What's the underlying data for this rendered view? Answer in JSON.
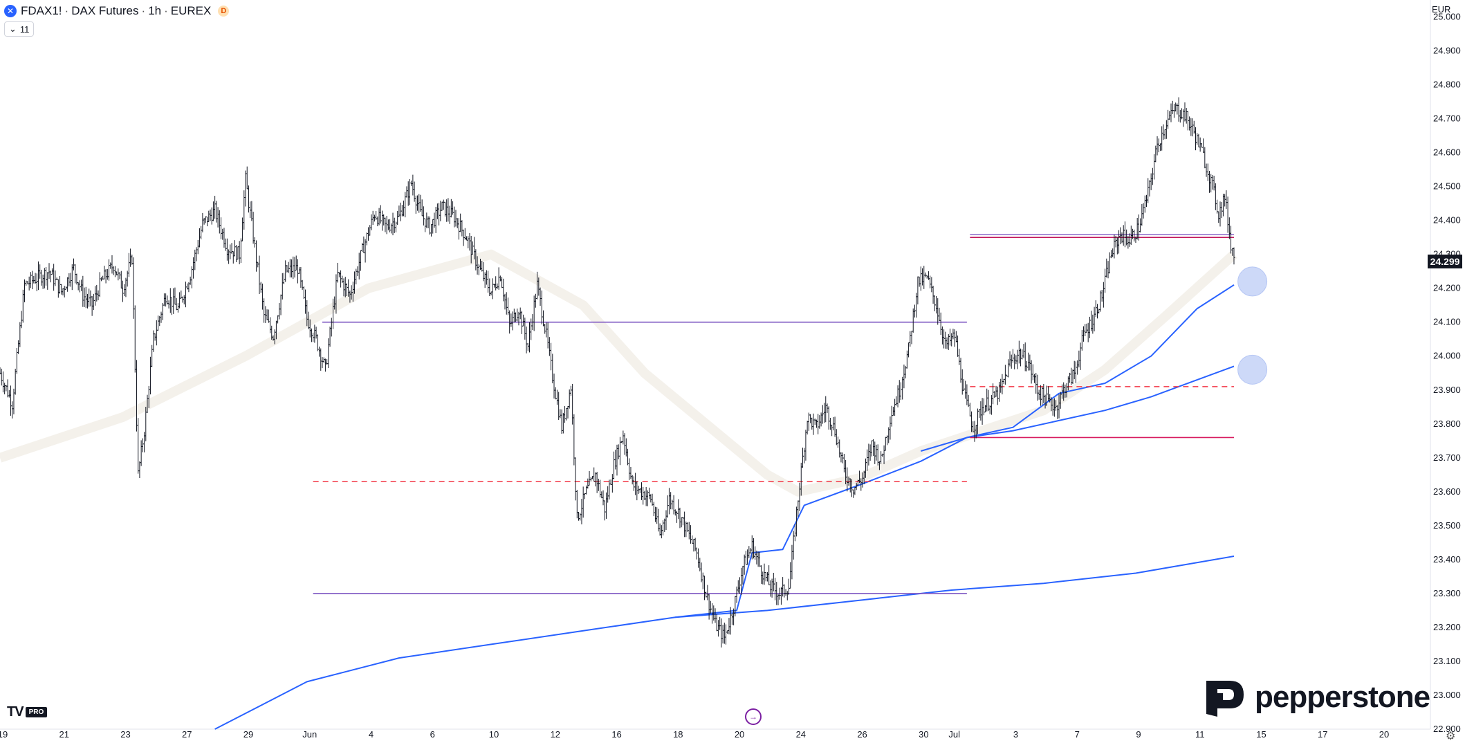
{
  "header": {
    "symbol": "FDAX1!",
    "description": "DAX Futures",
    "interval": "1h",
    "exchange": "EUREX",
    "delayed_badge": "D",
    "indicator_count": "11",
    "currency": "EUR"
  },
  "last_price_label": "24.299",
  "brand": {
    "name": "pepperstone",
    "platform_logo": "TV",
    "platform_tier": "PRO"
  },
  "icons": {
    "symbol_icon": "exchange-icon",
    "goto_realtime": "go-to-realtime-icon",
    "settings": "gear-icon",
    "chevron": "chevron-down-icon"
  },
  "colors": {
    "candles": "#131722",
    "vwap_bands": "#2962ff",
    "level_purple": "#7e57c2",
    "level_magenta": "#d81b60",
    "level_red_dashed": "#f23645",
    "markers": "#c5d3f7"
  },
  "chart_data": {
    "type": "line",
    "title": "",
    "xlabel": "",
    "ylabel": "",
    "y_ticks": [
      "25.000",
      "24.900",
      "24.800",
      "24.700",
      "24.600",
      "24.500",
      "24.400",
      "24.300",
      "24.200",
      "24.100",
      "24.000",
      "23.900",
      "23.800",
      "23.700",
      "23.600",
      "23.500",
      "23.400",
      "23.300",
      "23.200",
      "23.100",
      "23.000",
      "22.900"
    ],
    "ylim": [
      22900,
      25050
    ],
    "x_ticks": [
      {
        "i": 0,
        "label": "19"
      },
      {
        "i": 20,
        "label": "21"
      },
      {
        "i": 40,
        "label": "23"
      },
      {
        "i": 60,
        "label": "27"
      },
      {
        "i": 80,
        "label": "29"
      },
      {
        "i": 100,
        "label": "Jun"
      },
      {
        "i": 120,
        "label": "4"
      },
      {
        "i": 140,
        "label": "6"
      },
      {
        "i": 160,
        "label": "10"
      },
      {
        "i": 180,
        "label": "12"
      },
      {
        "i": 200,
        "label": "16"
      },
      {
        "i": 220,
        "label": "18"
      },
      {
        "i": 240,
        "label": "20"
      },
      {
        "i": 260,
        "label": "24"
      },
      {
        "i": 280,
        "label": "26"
      },
      {
        "i": 300,
        "label": "30"
      },
      {
        "i": 310,
        "label": "Jul"
      },
      {
        "i": 330,
        "label": "3"
      },
      {
        "i": 350,
        "label": "7"
      },
      {
        "i": 370,
        "label": "9"
      },
      {
        "i": 390,
        "label": "11"
      },
      {
        "i": 410,
        "label": "15"
      },
      {
        "i": 430,
        "label": "17"
      },
      {
        "i": 450,
        "label": "20"
      }
    ],
    "x_range": [
      0,
      466
    ],
    "price_path": [
      [
        0,
        23950
      ],
      [
        4,
        23860
      ],
      [
        8,
        24210
      ],
      [
        12,
        24230
      ],
      [
        16,
        24250
      ],
      [
        20,
        24190
      ],
      [
        24,
        24260
      ],
      [
        27,
        24180
      ],
      [
        30,
        24150
      ],
      [
        33,
        24220
      ],
      [
        37,
        24270
      ],
      [
        40,
        24200
      ],
      [
        43,
        24290
      ],
      [
        45,
        23650
      ],
      [
        47,
        23780
      ],
      [
        50,
        24050
      ],
      [
        54,
        24180
      ],
      [
        58,
        24140
      ],
      [
        62,
        24240
      ],
      [
        66,
        24390
      ],
      [
        70,
        24430
      ],
      [
        74,
        24320
      ],
      [
        78,
        24300
      ],
      [
        80,
        24520
      ],
      [
        83,
        24320
      ],
      [
        86,
        24120
      ],
      [
        89,
        24060
      ],
      [
        93,
        24250
      ],
      [
        97,
        24260
      ],
      [
        100,
        24110
      ],
      [
        103,
        24050
      ],
      [
        106,
        23960
      ],
      [
        110,
        24240
      ],
      [
        114,
        24180
      ],
      [
        118,
        24310
      ],
      [
        122,
        24420
      ],
      [
        126,
        24380
      ],
      [
        130,
        24410
      ],
      [
        134,
        24510
      ],
      [
        137,
        24420
      ],
      [
        140,
        24380
      ],
      [
        144,
        24440
      ],
      [
        148,
        24410
      ],
      [
        152,
        24350
      ],
      [
        156,
        24260
      ],
      [
        160,
        24190
      ],
      [
        163,
        24240
      ],
      [
        166,
        24090
      ],
      [
        169,
        24140
      ],
      [
        172,
        24030
      ],
      [
        175,
        24210
      ],
      [
        178,
        24060
      ],
      [
        180,
        23940
      ],
      [
        183,
        23790
      ],
      [
        186,
        23910
      ],
      [
        188,
        23520
      ],
      [
        191,
        23600
      ],
      [
        194,
        23650
      ],
      [
        197,
        23550
      ],
      [
        200,
        23680
      ],
      [
        203,
        23770
      ],
      [
        206,
        23620
      ],
      [
        209,
        23600
      ],
      [
        212,
        23580
      ],
      [
        215,
        23470
      ],
      [
        218,
        23580
      ],
      [
        221,
        23540
      ],
      [
        224,
        23480
      ],
      [
        227,
        23420
      ],
      [
        230,
        23300
      ],
      [
        233,
        23210
      ],
      [
        236,
        23170
      ],
      [
        239,
        23260
      ],
      [
        242,
        23380
      ],
      [
        245,
        23440
      ],
      [
        248,
        23370
      ],
      [
        251,
        23320
      ],
      [
        254,
        23300
      ],
      [
        257,
        23320
      ],
      [
        260,
        23580
      ],
      [
        263,
        23820
      ],
      [
        266,
        23790
      ],
      [
        269,
        23850
      ],
      [
        272,
        23780
      ],
      [
        275,
        23660
      ],
      [
        278,
        23610
      ],
      [
        281,
        23640
      ],
      [
        284,
        23740
      ],
      [
        287,
        23690
      ],
      [
        290,
        23820
      ],
      [
        293,
        23900
      ],
      [
        296,
        24020
      ],
      [
        299,
        24220
      ],
      [
        302,
        24230
      ],
      [
        305,
        24150
      ],
      [
        308,
        24030
      ],
      [
        311,
        24060
      ],
      [
        314,
        23890
      ],
      [
        317,
        23790
      ],
      [
        320,
        23850
      ],
      [
        323,
        23870
      ],
      [
        326,
        23900
      ],
      [
        329,
        23980
      ],
      [
        332,
        24010
      ],
      [
        335,
        23980
      ],
      [
        338,
        23900
      ],
      [
        341,
        23870
      ],
      [
        344,
        23850
      ],
      [
        347,
        23910
      ],
      [
        350,
        23950
      ],
      [
        353,
        24060
      ],
      [
        356,
        24110
      ],
      [
        359,
        24180
      ],
      [
        362,
        24300
      ],
      [
        365,
        24360
      ],
      [
        368,
        24340
      ],
      [
        371,
        24380
      ],
      [
        374,
        24480
      ],
      [
        377,
        24620
      ],
      [
        380,
        24690
      ],
      [
        383,
        24730
      ],
      [
        386,
        24710
      ],
      [
        389,
        24660
      ],
      [
        392,
        24590
      ],
      [
        395,
        24500
      ],
      [
        397,
        24420
      ],
      [
        399,
        24470
      ],
      [
        401,
        24330
      ],
      [
        402,
        24299
      ]
    ],
    "series": [
      {
        "values": [
          [
            0,
            23700
          ],
          [
            40,
            23820
          ],
          [
            80,
            24000
          ],
          [
            120,
            24200
          ],
          [
            160,
            24300
          ],
          [
            190,
            24150
          ],
          [
            210,
            23950
          ],
          [
            230,
            23800
          ],
          [
            250,
            23650
          ],
          [
            260,
            23600
          ],
          [
            280,
            23640
          ],
          [
            300,
            23720
          ],
          [
            320,
            23780
          ],
          [
            340,
            23840
          ],
          [
            360,
            23960
          ],
          [
            380,
            24120
          ],
          [
            402,
            24300
          ]
        ]
      },
      {
        "values": [
          [
            220,
            23230
          ],
          [
            240,
            23250
          ],
          [
            245,
            23420
          ],
          [
            255,
            23430
          ],
          [
            262,
            23560
          ],
          [
            280,
            23620
          ],
          [
            300,
            23690
          ],
          [
            315,
            23760
          ],
          [
            330,
            23790
          ],
          [
            345,
            23890
          ],
          [
            360,
            23920
          ],
          [
            375,
            24000
          ],
          [
            390,
            24140
          ],
          [
            402,
            24210
          ]
        ]
      },
      {
        "values": [
          [
            300,
            23720
          ],
          [
            315,
            23760
          ],
          [
            330,
            23780
          ],
          [
            345,
            23810
          ],
          [
            360,
            23840
          ],
          [
            375,
            23880
          ],
          [
            390,
            23930
          ],
          [
            402,
            23970
          ]
        ]
      },
      {
        "values": [
          [
            70,
            22900
          ],
          [
            100,
            23040
          ],
          [
            130,
            23110
          ],
          [
            160,
            23150
          ],
          [
            190,
            23190
          ],
          [
            220,
            23230
          ],
          [
            250,
            23250
          ],
          [
            280,
            23280
          ],
          [
            310,
            23310
          ],
          [
            340,
            23330
          ],
          [
            370,
            23360
          ],
          [
            402,
            23410
          ]
        ]
      }
    ],
    "levels": [
      {
        "price": 24100,
        "x0": 105,
        "x1": 315,
        "style": "solid",
        "color": "#7e57c2"
      },
      {
        "price": 23300,
        "x0": 102,
        "x1": 315,
        "style": "solid",
        "color": "#7e57c2"
      },
      {
        "price": 23630,
        "x0": 102,
        "x1": 315,
        "style": "dashed",
        "color": "#f23645"
      },
      {
        "price": 24350,
        "x0": 316,
        "x1": 402,
        "style": "double",
        "color": "#c2185b"
      },
      {
        "price": 23910,
        "x0": 316,
        "x1": 402,
        "style": "dashed",
        "color": "#f23645"
      },
      {
        "price": 23760,
        "x0": 316,
        "x1": 402,
        "style": "solid",
        "color": "#d81b60"
      }
    ],
    "markers": [
      {
        "x": 408,
        "price": 24220
      },
      {
        "x": 408,
        "price": 23960
      }
    ],
    "grid": false
  }
}
